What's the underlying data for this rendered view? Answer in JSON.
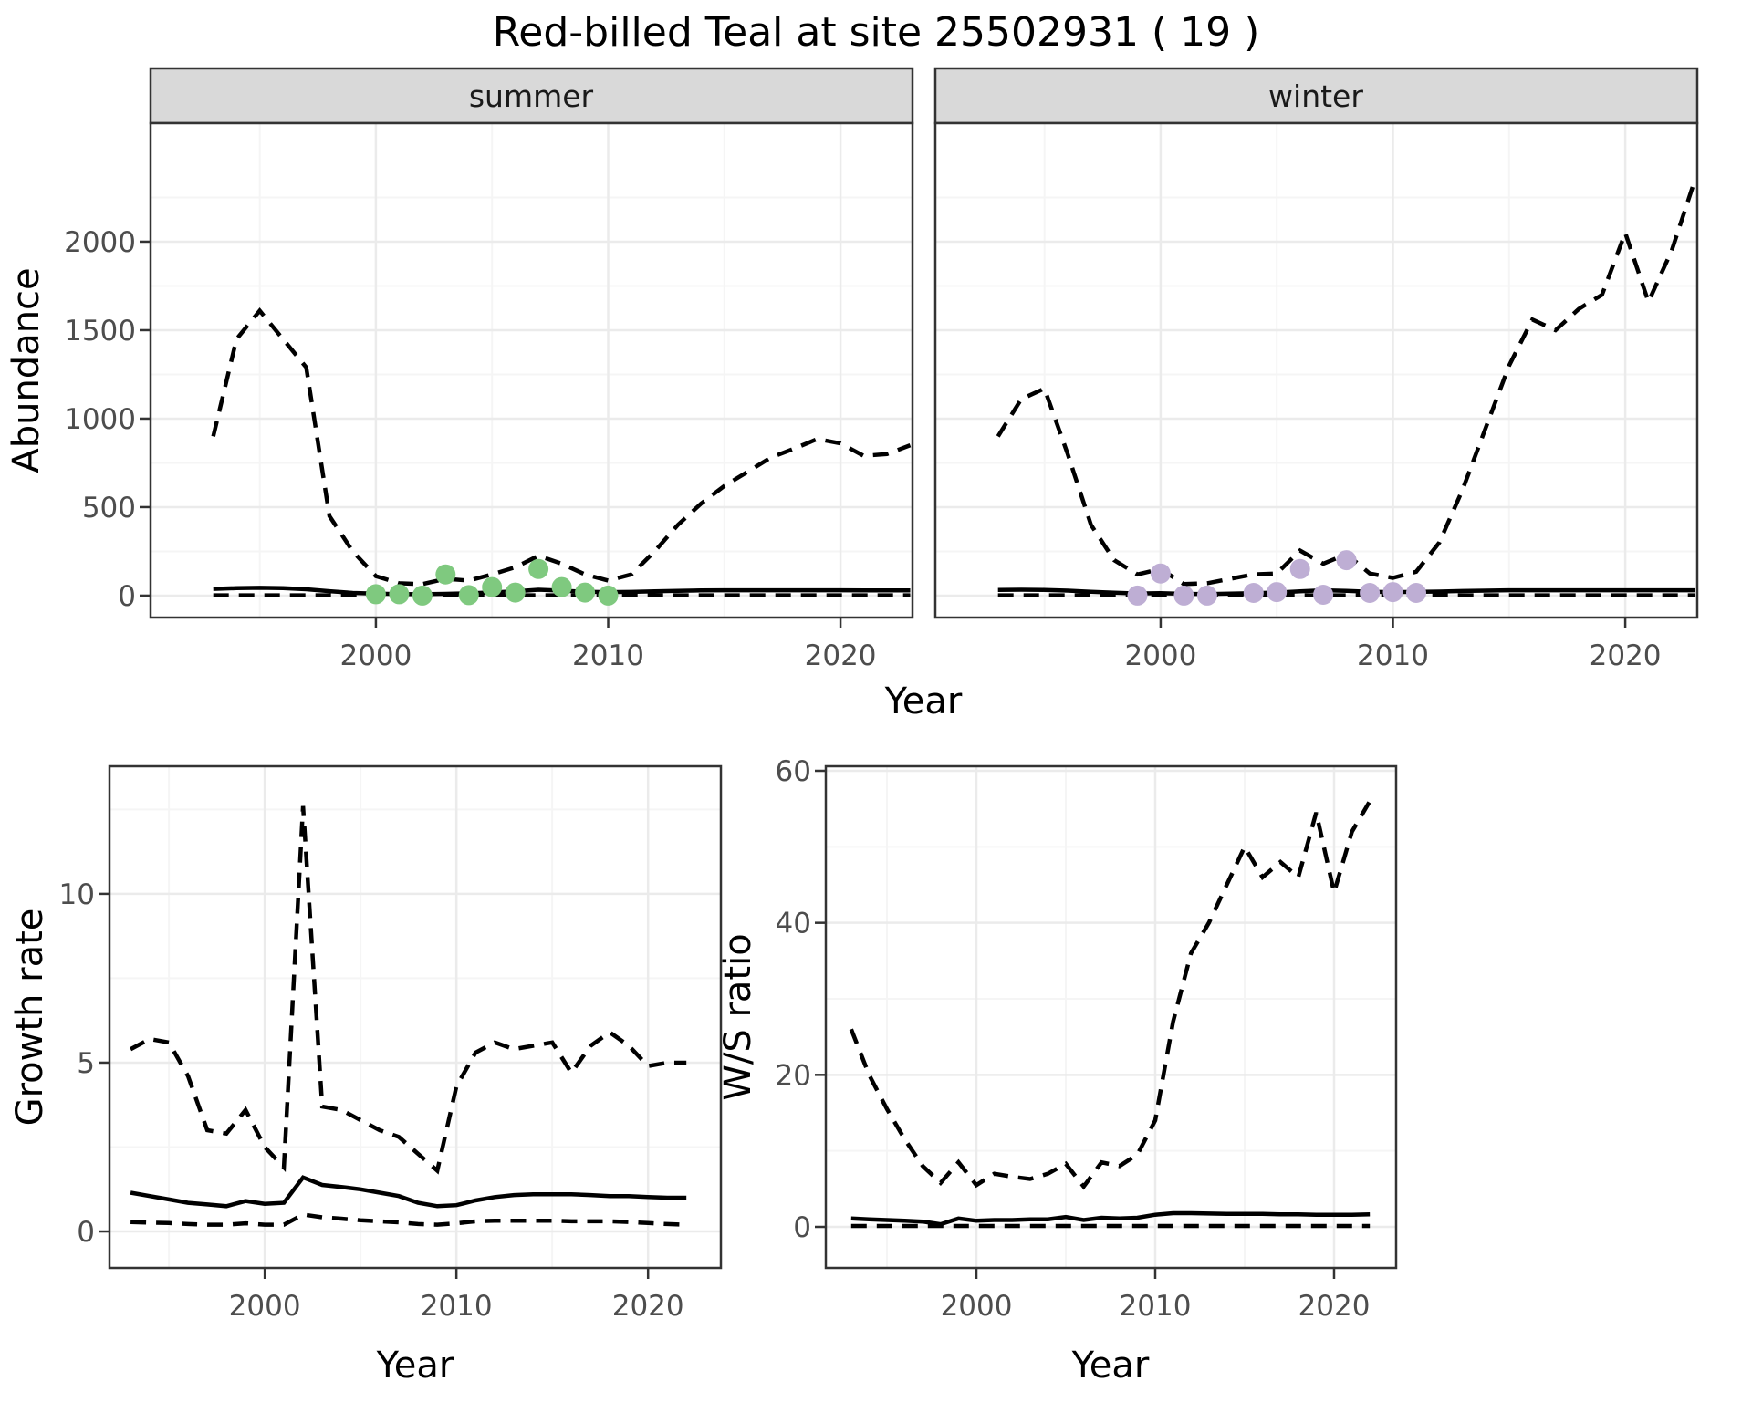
{
  "title": "Red-billed Teal at site 25502931 ( 19 )",
  "facets": [
    {
      "label": "summer"
    },
    {
      "label": "winter"
    }
  ],
  "axes": {
    "abundance_label": "Abundance",
    "year_label": "Year",
    "growth_label": "Growth rate",
    "ws_label": "W/S ratio"
  },
  "colors": {
    "summer_points": "#7FC97F",
    "winter_points": "#BEAED4",
    "line": "#000000",
    "strip_bg": "#D9D9D9",
    "grid_major": "#EBEBEB",
    "grid_minor": "#F5F5F5",
    "tick_text": "#4D4D4D",
    "panel_border": "#333333"
  },
  "chart_data": [
    {
      "id": "abundance_summer",
      "type": "line",
      "facet": "summer",
      "xlabel": "Year",
      "ylabel": "Abundance",
      "x": [
        1993,
        1994,
        1995,
        1996,
        1997,
        1998,
        1999,
        2000,
        2001,
        2002,
        2003,
        2004,
        2005,
        2006,
        2007,
        2008,
        2009,
        2010,
        2011,
        2012,
        2013,
        2014,
        2015,
        2016,
        2017,
        2018,
        2019,
        2020,
        2021,
        2022,
        2023
      ],
      "series": [
        {
          "name": "upper_95ci",
          "style": "dashed",
          "values": [
            900,
            1450,
            1610,
            1450,
            1290,
            450,
            250,
            110,
            70,
            65,
            95,
            85,
            120,
            160,
            225,
            180,
            120,
            85,
            120,
            250,
            400,
            520,
            620,
            700,
            780,
            830,
            885,
            860,
            790,
            800,
            850
          ]
        },
        {
          "name": "mean",
          "style": "solid",
          "values": [
            38,
            42,
            44,
            42,
            36,
            25,
            15,
            11,
            9,
            8,
            10,
            13,
            18,
            24,
            33,
            28,
            22,
            20,
            21,
            24,
            27,
            29,
            30,
            30,
            30,
            30,
            30,
            30,
            29,
            29,
            29
          ]
        },
        {
          "name": "lower_95ci",
          "style": "dashed",
          "values": [
            2,
            2,
            2,
            2,
            2,
            2,
            2,
            2,
            2,
            2,
            2,
            2,
            2,
            2,
            2,
            2,
            2,
            2,
            2,
            2,
            2,
            2,
            2,
            2,
            2,
            2,
            2,
            2,
            2,
            2,
            2
          ]
        }
      ],
      "points": {
        "name": "summer-observations",
        "color_key": "summer_points",
        "x": [
          2000,
          2001,
          2002,
          2003,
          2004,
          2005,
          2006,
          2007,
          2008,
          2009,
          2010
        ],
        "y": [
          8,
          8,
          0,
          120,
          3,
          48,
          17,
          150,
          48,
          17,
          0
        ]
      },
      "xticks": [
        2000,
        2010,
        2020
      ],
      "yticks": [
        0,
        500,
        1000,
        1500,
        2000
      ],
      "xlim": [
        1990.3,
        2023.1
      ],
      "ylim": [
        -124,
        2670
      ]
    },
    {
      "id": "abundance_winter",
      "type": "line",
      "facet": "winter",
      "xlabel": "Year",
      "ylabel": "Abundance",
      "x": [
        1993,
        1994,
        1995,
        1996,
        1997,
        1998,
        1999,
        2000,
        2001,
        2002,
        2003,
        2004,
        2005,
        2006,
        2007,
        2008,
        2009,
        2010,
        2011,
        2012,
        2013,
        2014,
        2015,
        2016,
        2017,
        2018,
        2019,
        2020,
        2021,
        2022,
        2023
      ],
      "series": [
        {
          "name": "upper_95ci",
          "style": "dashed",
          "values": [
            900,
            1110,
            1170,
            800,
            400,
            200,
            120,
            150,
            65,
            70,
            95,
            120,
            125,
            255,
            180,
            235,
            125,
            100,
            135,
            300,
            600,
            950,
            1300,
            1560,
            1500,
            1620,
            1700,
            2050,
            1660,
            1950,
            2350
          ]
        },
        {
          "name": "mean",
          "style": "solid",
          "values": [
            32,
            33,
            32,
            28,
            22,
            16,
            12,
            14,
            10,
            9,
            11,
            14,
            17,
            24,
            30,
            27,
            22,
            20,
            21,
            23,
            26,
            28,
            30,
            30,
            30,
            30,
            30,
            30,
            30,
            30,
            30
          ]
        },
        {
          "name": "lower_95ci",
          "style": "dashed",
          "values": [
            2,
            2,
            2,
            2,
            2,
            2,
            2,
            2,
            2,
            2,
            2,
            2,
            2,
            2,
            2,
            2,
            2,
            2,
            2,
            2,
            2,
            2,
            2,
            2,
            2,
            2,
            2,
            2,
            2,
            2,
            2
          ]
        }
      ],
      "points": {
        "name": "winter-observations",
        "color_key": "winter_points",
        "x": [
          1999,
          2000,
          2001,
          2002,
          2004,
          2005,
          2006,
          2007,
          2008,
          2009,
          2010,
          2011
        ],
        "y": [
          0,
          125,
          0,
          0,
          15,
          20,
          150,
          5,
          200,
          15,
          20,
          15
        ]
      },
      "xticks": [
        2000,
        2010,
        2020
      ],
      "yticks": [
        0,
        500,
        1000,
        1500,
        2000
      ],
      "xlim": [
        1990.3,
        2023.1
      ],
      "ylim": [
        -124,
        2670
      ]
    },
    {
      "id": "growth_rate",
      "type": "line",
      "facet": "",
      "xlabel": "Year",
      "ylabel": "Growth rate",
      "x": [
        1993,
        1994,
        1995,
        1996,
        1997,
        1998,
        1999,
        2000,
        2001,
        2002,
        2003,
        2004,
        2005,
        2006,
        2007,
        2008,
        2009,
        2010,
        2011,
        2012,
        2013,
        2014,
        2015,
        2016,
        2017,
        2018,
        2019,
        2020,
        2021,
        2022
      ],
      "series": [
        {
          "name": "upper_95ci",
          "style": "dashed",
          "values": [
            5.4,
            5.7,
            5.6,
            4.6,
            3.0,
            2.9,
            3.6,
            2.5,
            1.9,
            12.6,
            3.7,
            3.6,
            3.3,
            3.0,
            2.8,
            2.3,
            1.8,
            4.3,
            5.3,
            5.6,
            5.4,
            5.5,
            5.6,
            4.7,
            5.5,
            5.9,
            5.5,
            4.9,
            5.0,
            5.0
          ]
        },
        {
          "name": "mean",
          "style": "solid",
          "values": [
            1.15,
            1.05,
            0.95,
            0.85,
            0.8,
            0.75,
            0.9,
            0.82,
            0.85,
            1.6,
            1.38,
            1.32,
            1.25,
            1.15,
            1.05,
            0.85,
            0.75,
            0.78,
            0.92,
            1.02,
            1.08,
            1.1,
            1.1,
            1.1,
            1.08,
            1.05,
            1.05,
            1.02,
            1.0,
            1.0
          ]
        },
        {
          "name": "lower_95ci",
          "style": "dashed",
          "values": [
            0.28,
            0.26,
            0.25,
            0.22,
            0.2,
            0.2,
            0.24,
            0.2,
            0.2,
            0.5,
            0.42,
            0.38,
            0.33,
            0.3,
            0.27,
            0.22,
            0.2,
            0.24,
            0.3,
            0.32,
            0.32,
            0.32,
            0.32,
            0.3,
            0.3,
            0.3,
            0.28,
            0.25,
            0.22,
            0.2
          ]
        }
      ],
      "points": null,
      "xticks": [
        2000,
        2010,
        2020
      ],
      "yticks": [
        0,
        5,
        10
      ],
      "xlim": [
        1991.9,
        2023.8
      ],
      "ylim": [
        -1.08,
        13.78
      ]
    },
    {
      "id": "ws_ratio",
      "type": "line",
      "facet": "",
      "xlabel": "Year",
      "ylabel": "W/S ratio",
      "x": [
        1993,
        1994,
        1995,
        1996,
        1997,
        1998,
        1999,
        2000,
        2001,
        2002,
        2003,
        2004,
        2005,
        2006,
        2007,
        2008,
        2009,
        2010,
        2011,
        2012,
        2013,
        2014,
        2015,
        2016,
        2017,
        2018,
        2019,
        2020,
        2021,
        2022
      ],
      "series": [
        {
          "name": "upper_95ci",
          "style": "dashed",
          "values": [
            26,
            20,
            15.5,
            11.5,
            8.0,
            5.8,
            8.5,
            5.5,
            7.0,
            6.6,
            6.3,
            7.0,
            8.3,
            5.3,
            8.5,
            8.0,
            9.5,
            14,
            27,
            36,
            40,
            45,
            50,
            46,
            48,
            46,
            54.5,
            44,
            52,
            56
          ]
        },
        {
          "name": "mean",
          "style": "solid",
          "values": [
            1.1,
            1.0,
            0.9,
            0.8,
            0.7,
            0.35,
            1.1,
            0.8,
            0.9,
            0.9,
            1.0,
            1.0,
            1.3,
            0.9,
            1.2,
            1.1,
            1.2,
            1.6,
            1.8,
            1.8,
            1.75,
            1.7,
            1.7,
            1.7,
            1.65,
            1.65,
            1.6,
            1.6,
            1.6,
            1.65
          ]
        },
        {
          "name": "lower_95ci",
          "style": "dashed",
          "values": [
            0.12,
            0.12,
            0.12,
            0.12,
            0.12,
            0.12,
            0.12,
            0.12,
            0.12,
            0.12,
            0.12,
            0.12,
            0.12,
            0.12,
            0.12,
            0.12,
            0.12,
            0.12,
            0.12,
            0.12,
            0.12,
            0.12,
            0.12,
            0.12,
            0.12,
            0.12,
            0.12,
            0.12,
            0.12,
            0.12
          ]
        }
      ],
      "points": null,
      "xticks": [
        2000,
        2010,
        2020
      ],
      "yticks": [
        0,
        20,
        40,
        60
      ],
      "xlim": [
        1991.58,
        2023.47
      ],
      "ylim": [
        -5.4,
        60.6
      ]
    }
  ]
}
